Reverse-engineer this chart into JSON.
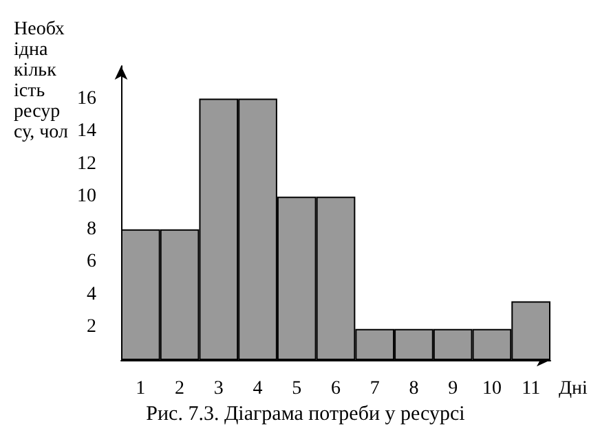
{
  "chart_data": {
    "type": "bar",
    "title": "Рис. 7.3. Діаграма потреби у ресурсі",
    "xlabel": "Дні",
    "ylabel": "Необхідна кількість ресурсу, чол",
    "categories": [
      "1",
      "2",
      "3",
      "4",
      "5",
      "6",
      "7",
      "8",
      "9",
      "10",
      "11"
    ],
    "values": [
      8,
      8,
      16,
      16,
      10,
      10,
      1.9,
      1.9,
      1.9,
      1.9,
      3.6
    ],
    "color": "#999999",
    "ylim": [
      0,
      18
    ],
    "yticks": [
      2,
      4,
      6,
      8,
      10,
      12,
      14,
      16
    ],
    "grid": false
  }
}
